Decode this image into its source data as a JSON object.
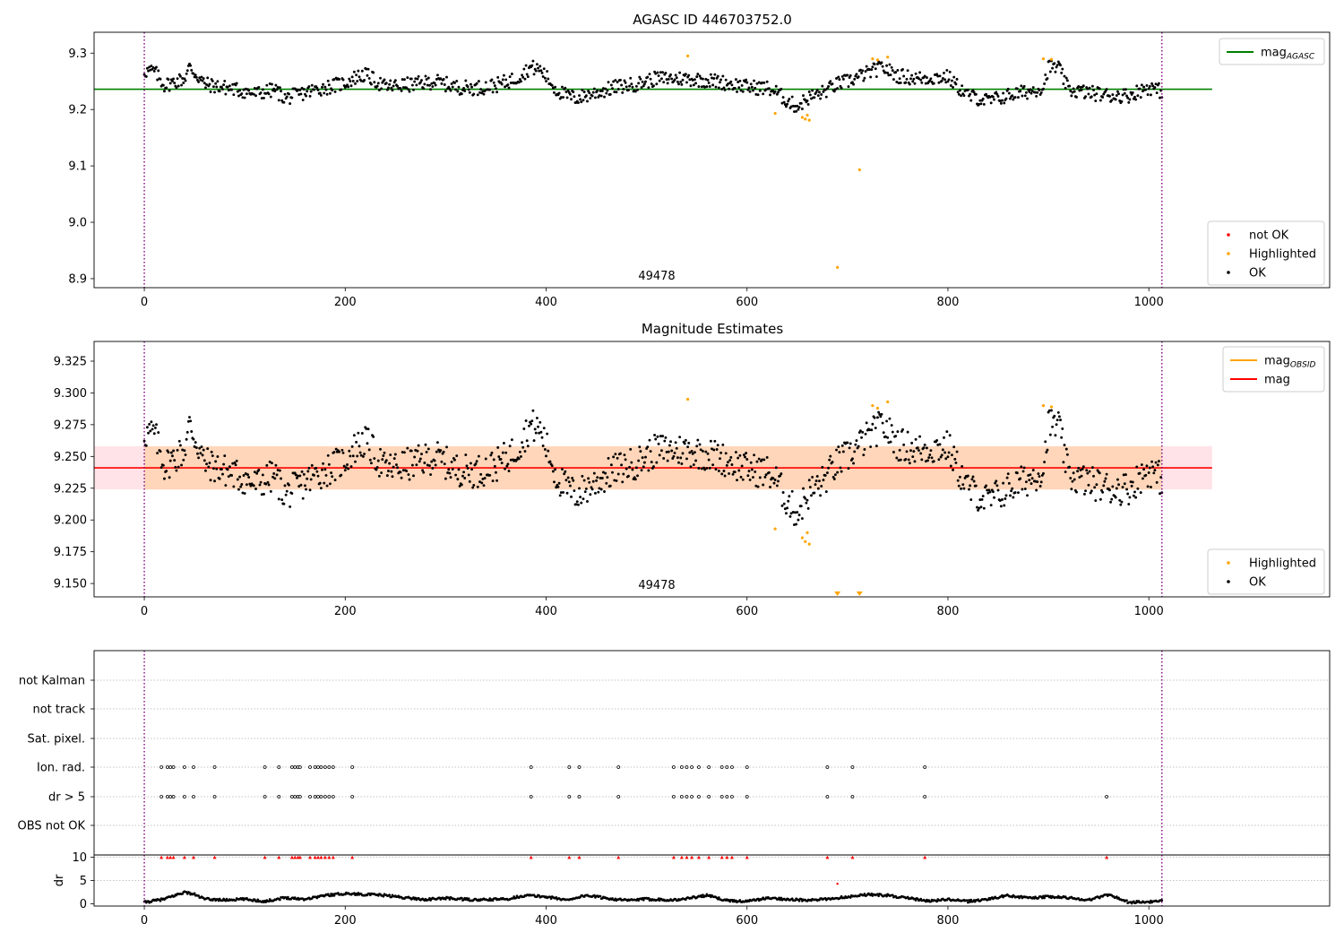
{
  "chart_data": [
    {
      "type": "scatter",
      "title": "AGASC ID 446703752.0",
      "annotation": "49478",
      "xlim": [
        -50,
        1180
      ],
      "ylim": [
        8.884,
        9.337
      ],
      "xticks": [
        0,
        200,
        400,
        600,
        800,
        1000
      ],
      "yticks": [
        8.9,
        9.0,
        9.1,
        9.2,
        9.3
      ],
      "ytick_labels": [
        "8.9",
        "9.0",
        "9.1",
        "9.2",
        "9.3"
      ],
      "vlines": [
        0,
        1013
      ],
      "hline": {
        "name": "mag_AGASC",
        "value": 9.236,
        "x_range": [
          -50,
          1063
        ],
        "color": "#008000"
      },
      "legend_top": [
        {
          "name": "mag",
          "subscript": "AGASC",
          "color": "#008000",
          "kind": "line"
        }
      ],
      "legend_bottom": [
        {
          "name": "not OK",
          "color": "#ff0000",
          "kind": "dot"
        },
        {
          "name": "Highlighted",
          "color": "#ffa500",
          "kind": "dot"
        },
        {
          "name": "OK",
          "color": "#000000",
          "kind": "dot"
        }
      ],
      "highlighted": [
        [
          541,
          9.295
        ],
        [
          628,
          9.193
        ],
        [
          655,
          9.186
        ],
        [
          658,
          9.183
        ],
        [
          660,
          9.19
        ],
        [
          662,
          9.181
        ],
        [
          690,
          8.92
        ],
        [
          712,
          9.093
        ],
        [
          725,
          9.29
        ],
        [
          730,
          9.288
        ],
        [
          740,
          9.293
        ],
        [
          895,
          9.29
        ],
        [
          903,
          9.289
        ]
      ],
      "ok_profile": [
        [
          0,
          9.268
        ],
        [
          10,
          9.268
        ],
        [
          20,
          9.243
        ],
        [
          40,
          9.255
        ],
        [
          45,
          9.275
        ],
        [
          60,
          9.245
        ],
        [
          90,
          9.236
        ],
        [
          110,
          9.228
        ],
        [
          130,
          9.235
        ],
        [
          140,
          9.22
        ],
        [
          170,
          9.235
        ],
        [
          200,
          9.247
        ],
        [
          210,
          9.257
        ],
        [
          220,
          9.262
        ],
        [
          240,
          9.24
        ],
        [
          270,
          9.245
        ],
        [
          290,
          9.25
        ],
        [
          310,
          9.24
        ],
        [
          330,
          9.238
        ],
        [
          350,
          9.243
        ],
        [
          370,
          9.255
        ],
        [
          385,
          9.275
        ],
        [
          395,
          9.27
        ],
        [
          410,
          9.235
        ],
        [
          420,
          9.225
        ],
        [
          430,
          9.22
        ],
        [
          450,
          9.23
        ],
        [
          470,
          9.24
        ],
        [
          490,
          9.245
        ],
        [
          510,
          9.255
        ],
        [
          540,
          9.255
        ],
        [
          570,
          9.25
        ],
        [
          600,
          9.24
        ],
        [
          620,
          9.238
        ],
        [
          630,
          9.23
        ],
        [
          640,
          9.215
        ],
        [
          650,
          9.205
        ],
        [
          660,
          9.22
        ],
        [
          675,
          9.23
        ],
        [
          690,
          9.245
        ],
        [
          700,
          9.25
        ],
        [
          720,
          9.265
        ],
        [
          735,
          9.275
        ],
        [
          750,
          9.26
        ],
        [
          770,
          9.255
        ],
        [
          800,
          9.258
        ],
        [
          810,
          9.24
        ],
        [
          820,
          9.225
        ],
        [
          840,
          9.215
        ],
        [
          860,
          9.225
        ],
        [
          880,
          9.232
        ],
        [
          895,
          9.24
        ],
        [
          900,
          9.275
        ],
        [
          910,
          9.275
        ],
        [
          920,
          9.235
        ],
        [
          940,
          9.23
        ],
        [
          960,
          9.225
        ],
        [
          980,
          9.225
        ],
        [
          1000,
          9.24
        ],
        [
          1013,
          9.232
        ]
      ]
    },
    {
      "type": "scatter",
      "title": "Magnitude Estimates",
      "annotation": "49478",
      "xlim": [
        -50,
        1180
      ],
      "ylim": [
        9.1395,
        9.3405
      ],
      "xticks": [
        0,
        200,
        400,
        600,
        800,
        1000
      ],
      "yticks": [
        9.15,
        9.175,
        9.2,
        9.225,
        9.25,
        9.275,
        9.3,
        9.325
      ],
      "ytick_labels": [
        "9.150",
        "9.175",
        "9.200",
        "9.225",
        "9.250",
        "9.275",
        "9.300",
        "9.325"
      ],
      "vlines": [
        0,
        1013
      ],
      "hline": {
        "name": "mag",
        "value": 9.241,
        "x_range": [
          -50,
          1063
        ],
        "color": "#ff0000"
      },
      "bands": [
        {
          "lo": 9.224,
          "hi": 9.258,
          "color": "#ffc0cb",
          "opacity": 0.45
        },
        {
          "lo": 9.224,
          "hi": 9.258,
          "color": "#ffa500",
          "opacity": 0.2,
          "x_range": [
            0,
            1013
          ]
        }
      ],
      "legend_top": [
        {
          "name": "mag",
          "subscript": "OBSID",
          "color": "#ffa500",
          "kind": "line"
        },
        {
          "name": "mag",
          "subscript": "",
          "color": "#ff0000",
          "kind": "line"
        }
      ],
      "legend_bottom": [
        {
          "name": "Highlighted",
          "color": "#ffa500",
          "kind": "dot"
        },
        {
          "name": "OK",
          "color": "#000000",
          "kind": "dot"
        }
      ],
      "highlighted": [
        [
          541,
          9.295
        ],
        [
          628,
          9.193
        ],
        [
          655,
          9.186
        ],
        [
          658,
          9.183
        ],
        [
          660,
          9.19
        ],
        [
          662,
          9.181
        ],
        [
          725,
          9.29
        ],
        [
          730,
          9.288
        ],
        [
          740,
          9.293
        ],
        [
          895,
          9.29
        ],
        [
          903,
          9.289
        ]
      ],
      "off_scale_below": [
        690,
        712
      ]
    },
    {
      "type": "scatter",
      "xlim": [
        -50,
        1180
      ],
      "xticks": [
        0,
        200,
        400,
        600,
        800,
        1000
      ],
      "flag_rows": [
        "not Kalman",
        "not track",
        "Sat. pixel.",
        "Ion. rad.",
        "dr > 5",
        "OBS not OK"
      ],
      "flag_points": {
        "Ion. rad.": [
          17,
          23,
          26,
          29,
          40,
          49,
          70,
          120,
          134,
          147,
          150,
          153,
          155,
          165,
          170,
          173,
          176,
          180,
          184,
          188,
          207,
          385,
          423,
          433,
          472,
          527,
          535,
          540,
          545,
          552,
          562,
          575,
          580,
          585,
          600,
          680,
          705,
          777
        ],
        "dr > 5": [
          17,
          23,
          26,
          29,
          40,
          49,
          70,
          120,
          134,
          147,
          150,
          153,
          155,
          165,
          170,
          173,
          176,
          180,
          184,
          188,
          207,
          385,
          423,
          433,
          472,
          527,
          535,
          540,
          545,
          552,
          562,
          575,
          580,
          585,
          600,
          680,
          705,
          777,
          958
        ]
      },
      "dr_ylabel": "dr",
      "dr_ylim": [
        -0.5,
        10.5
      ],
      "dr_yticks": [
        0,
        5,
        10
      ],
      "dr_ytick_labels": [
        "0",
        "5",
        "10"
      ],
      "dr_threshold": 10,
      "dr_capped": [
        17,
        23,
        26,
        29,
        40,
        49,
        70,
        120,
        134,
        147,
        150,
        153,
        155,
        165,
        170,
        173,
        176,
        180,
        184,
        188,
        207,
        385,
        423,
        433,
        472,
        527,
        535,
        540,
        545,
        552,
        562,
        575,
        580,
        585,
        600,
        680,
        705,
        777,
        958
      ],
      "dr_outlier": [
        [
          690,
          4.3
        ]
      ],
      "dr_profile": [
        [
          0,
          0.3
        ],
        [
          20,
          1.0
        ],
        [
          40,
          2.5
        ],
        [
          50,
          2.0
        ],
        [
          60,
          1.0
        ],
        [
          80,
          0.8
        ],
        [
          100,
          1.0
        ],
        [
          120,
          0.5
        ],
        [
          140,
          1.3
        ],
        [
          160,
          1.0
        ],
        [
          180,
          1.8
        ],
        [
          200,
          2.2
        ],
        [
          240,
          1.8
        ],
        [
          260,
          1.3
        ],
        [
          280,
          0.9
        ],
        [
          300,
          1.2
        ],
        [
          330,
          0.8
        ],
        [
          360,
          1.0
        ],
        [
          380,
          1.8
        ],
        [
          400,
          1.5
        ],
        [
          420,
          0.8
        ],
        [
          440,
          1.8
        ],
        [
          460,
          1.2
        ],
        [
          480,
          0.7
        ],
        [
          500,
          1.0
        ],
        [
          530,
          0.8
        ],
        [
          560,
          1.8
        ],
        [
          580,
          0.7
        ],
        [
          600,
          0.5
        ],
        [
          620,
          1.2
        ],
        [
          640,
          1.0
        ],
        [
          660,
          0.7
        ],
        [
          680,
          1.0
        ],
        [
          700,
          1.5
        ],
        [
          720,
          2.0
        ],
        [
          740,
          1.8
        ],
        [
          760,
          1.2
        ],
        [
          780,
          0.6
        ],
        [
          800,
          0.9
        ],
        [
          820,
          0.5
        ],
        [
          840,
          1.0
        ],
        [
          860,
          1.8
        ],
        [
          880,
          1.2
        ],
        [
          900,
          1.5
        ],
        [
          920,
          1.3
        ],
        [
          940,
          0.8
        ],
        [
          960,
          2.0
        ],
        [
          980,
          0.3
        ],
        [
          1000,
          0.4
        ],
        [
          1013,
          0.5
        ]
      ]
    }
  ]
}
